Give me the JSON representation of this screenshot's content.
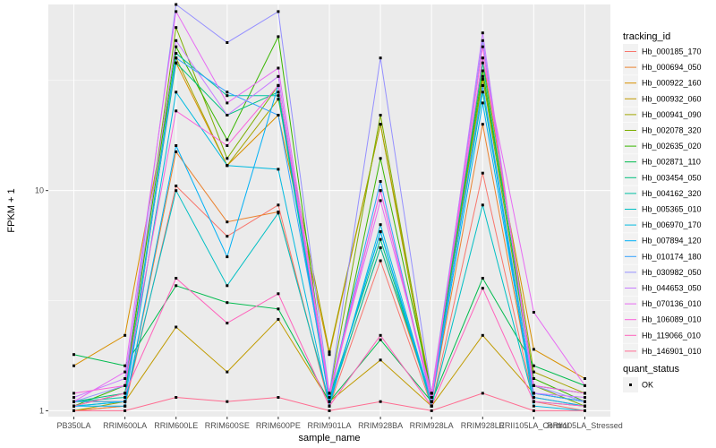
{
  "chart_data": {
    "type": "line",
    "xlabel": "sample_name",
    "ylabel": "FPKM + 1",
    "y_scale": "log10",
    "ylim": [
      0.94,
      70
    ],
    "y_ticks": [
      {
        "value": 1,
        "label": "1"
      },
      {
        "value": 10,
        "label": "10"
      }
    ],
    "grid": true,
    "legend_position": "right",
    "colors": {
      "panel_background": "#ebebeb",
      "gridline": "#ffffff",
      "point": "#000000"
    },
    "categories": [
      "PB350LA",
      "RRIM600LA",
      "RRIM600LE",
      "RRIM600SE",
      "RRIM600PE",
      "RRIM901LA",
      "RRIM928BA",
      "RRIM928LA",
      "RRIM928LE",
      "RRII105LA_Control",
      "RRII105LA_Stressed"
    ],
    "legend": {
      "title": "tracking_id",
      "entries": [
        "Hb_000185_170",
        "Hb_000694_050",
        "Hb_000922_160",
        "Hb_000932_060",
        "Hb_000941_090",
        "Hb_002078_320",
        "Hb_002635_020",
        "Hb_002871_110",
        "Hb_003454_050",
        "Hb_004162_320",
        "Hb_005365_010",
        "Hb_006970_170",
        "Hb_007894_120",
        "Hb_010174_180",
        "Hb_030982_050",
        "Hb_044653_050",
        "Hb_070136_010",
        "Hb_106089_010",
        "Hb_119066_010",
        "Hb_146901_010"
      ]
    },
    "shape_legend": {
      "title": "quant_status",
      "entries": [
        "OK"
      ]
    },
    "series": [
      {
        "name": "Hb_000185_170",
        "color": "#F8766D",
        "values": [
          1.0,
          1.05,
          10.5,
          6.2,
          8.6,
          1.05,
          4.8,
          1.05,
          12.0,
          1.1,
          1.0
        ]
      },
      {
        "name": "Hb_000694_050",
        "color": "#EA8331",
        "values": [
          1.0,
          1.05,
          15.0,
          7.2,
          8.0,
          1.1,
          5.5,
          1.1,
          20.0,
          1.15,
          1.05
        ]
      },
      {
        "name": "Hb_000922_160",
        "color": "#D89000",
        "values": [
          1.6,
          2.2,
          38.0,
          13.0,
          22.0,
          1.8,
          20.0,
          1.2,
          32.0,
          1.9,
          1.4
        ]
      },
      {
        "name": "Hb_000932_060",
        "color": "#C09B00",
        "values": [
          1.1,
          1.1,
          2.4,
          1.5,
          2.6,
          1.1,
          1.7,
          1.05,
          2.2,
          1.2,
          1.1
        ]
      },
      {
        "name": "Hb_000941_090",
        "color": "#A3A500",
        "values": [
          1.0,
          1.1,
          40.0,
          13.0,
          26.0,
          1.85,
          20.0,
          1.1,
          40.0,
          1.5,
          1.2
        ]
      },
      {
        "name": "Hb_002078_320",
        "color": "#7CAE00",
        "values": [
          1.05,
          1.2,
          55.0,
          14.0,
          30.0,
          1.2,
          22.0,
          1.15,
          33.0,
          1.3,
          1.05
        ]
      },
      {
        "name": "Hb_002635_020",
        "color": "#39B600",
        "values": [
          1.05,
          1.3,
          45.0,
          17.0,
          50.0,
          1.1,
          14.0,
          1.2,
          35.0,
          1.4,
          1.1
        ]
      },
      {
        "name": "Hb_002871_110",
        "color": "#00BB4E",
        "values": [
          1.8,
          1.6,
          3.7,
          3.1,
          2.9,
          1.1,
          2.1,
          1.1,
          4.0,
          1.6,
          1.3
        ]
      },
      {
        "name": "Hb_003454_050",
        "color": "#00BF7D",
        "values": [
          1.1,
          1.2,
          38.0,
          22.0,
          28.0,
          1.15,
          6.0,
          1.1,
          38.0,
          1.3,
          1.2
        ]
      },
      {
        "name": "Hb_004162_320",
        "color": "#00C1A3",
        "values": [
          1.1,
          1.15,
          42.0,
          27.0,
          27.0,
          1.1,
          5.5,
          1.15,
          28.0,
          1.2,
          1.1
        ]
      },
      {
        "name": "Hb_005365_010",
        "color": "#00BFC4",
        "values": [
          1.05,
          1.1,
          10.0,
          3.7,
          7.9,
          1.1,
          6.5,
          1.05,
          8.6,
          1.1,
          1.05
        ]
      },
      {
        "name": "Hb_006970_170",
        "color": "#00BAE0",
        "values": [
          1.05,
          1.1,
          28.0,
          13.0,
          12.5,
          1.05,
          7.0,
          1.1,
          30.0,
          1.05,
          1.0
        ]
      },
      {
        "name": "Hb_007894_120",
        "color": "#00B0F6",
        "values": [
          1.05,
          1.05,
          16.0,
          5.0,
          30.0,
          1.1,
          6.5,
          1.1,
          25.0,
          1.15,
          1.05
        ]
      },
      {
        "name": "Hb_010174_180",
        "color": "#35A2FF",
        "values": [
          1.1,
          1.1,
          40.0,
          28.0,
          22.0,
          1.2,
          11.0,
          1.1,
          30.0,
          1.2,
          1.1
        ]
      },
      {
        "name": "Hb_030982_050",
        "color": "#9590FF",
        "values": [
          1.1,
          1.3,
          70.0,
          47.0,
          65.0,
          1.2,
          40.0,
          1.2,
          48.0,
          1.3,
          1.1
        ]
      },
      {
        "name": "Hb_044653_050",
        "color": "#C77CFF",
        "values": [
          1.15,
          1.4,
          48.0,
          22.0,
          33.0,
          1.15,
          10.0,
          1.1,
          52.0,
          1.2,
          1.15
        ]
      },
      {
        "name": "Hb_070136_010",
        "color": "#E76BF3",
        "values": [
          1.1,
          1.5,
          65.0,
          25.0,
          36.0,
          1.2,
          9.0,
          1.2,
          40.0,
          2.8,
          1.3
        ]
      },
      {
        "name": "Hb_106089_010",
        "color": "#FA62DB",
        "values": [
          1.2,
          1.3,
          23.0,
          16.0,
          30.0,
          1.2,
          10.0,
          1.15,
          45.0,
          1.3,
          1.2
        ]
      },
      {
        "name": "Hb_119066_010",
        "color": "#FF62BC",
        "values": [
          1.05,
          1.2,
          4.0,
          2.5,
          3.4,
          1.05,
          2.2,
          1.05,
          3.6,
          1.1,
          1.05
        ]
      },
      {
        "name": "Hb_146901_010",
        "color": "#FF6C91",
        "values": [
          1.0,
          1.0,
          1.15,
          1.1,
          1.15,
          1.0,
          1.1,
          1.0,
          1.2,
          1.0,
          1.0
        ]
      }
    ]
  }
}
